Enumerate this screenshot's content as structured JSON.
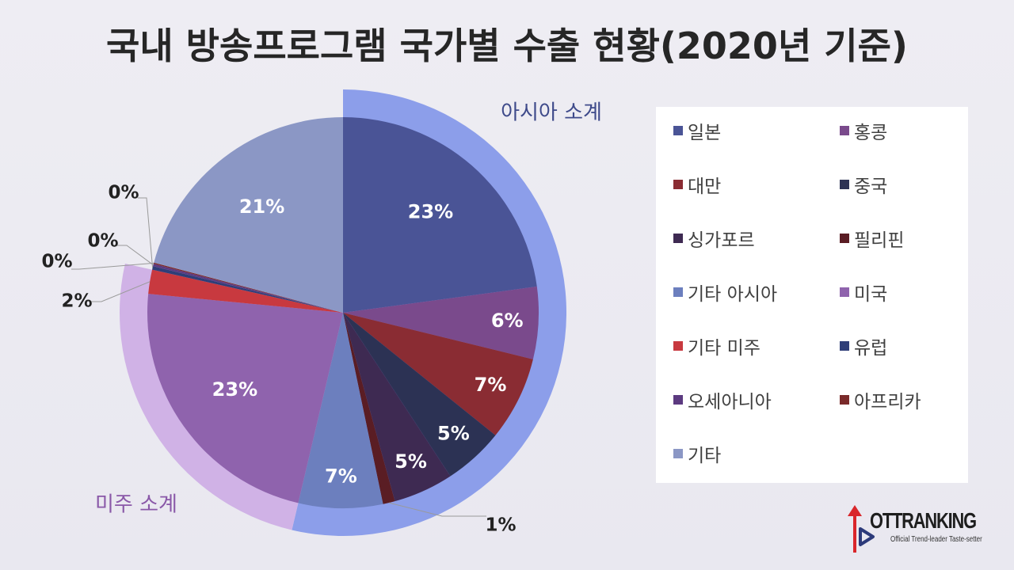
{
  "title": "국내 방송프로그램 국가별 수출 현황(2020년 기준)",
  "chart_data": {
    "type": "pie",
    "categories": [
      "일본",
      "홍콩",
      "대만",
      "중국",
      "싱가포르",
      "필리핀",
      "기타 아시아",
      "미국",
      "기타 미주",
      "유럽",
      "오세아니아",
      "아프리카",
      "기타"
    ],
    "values": [
      23,
      6,
      7,
      5,
      5,
      1,
      7,
      23,
      2,
      0.3,
      0.2,
      0.1,
      21
    ],
    "data_labels": [
      "23%",
      "6%",
      "7%",
      "5%",
      "5%",
      "1%",
      "7%",
      "23%",
      "2%",
      "0%",
      "0%",
      "0%",
      "21%"
    ],
    "colors": [
      "#4a5496",
      "#7a4a8c",
      "#8a2c33",
      "#2c3254",
      "#3e2a52",
      "#5a1d24",
      "#6c7fbe",
      "#8f63ad",
      "#c8393f",
      "#2f3e78",
      "#5c3a80",
      "#7a2a2a",
      "#8b97c5"
    ],
    "subtotals": [
      {
        "label": "아시아 소계",
        "value": 54,
        "color": "#8c9eea"
      },
      {
        "label": "미주 소계",
        "value": 25,
        "color": "#d0b2e6"
      }
    ],
    "legend_position": "right",
    "unit": "%"
  },
  "logo": {
    "name": "OTTRANKING",
    "tagline": "Official Trend-leader Taste-setter"
  }
}
